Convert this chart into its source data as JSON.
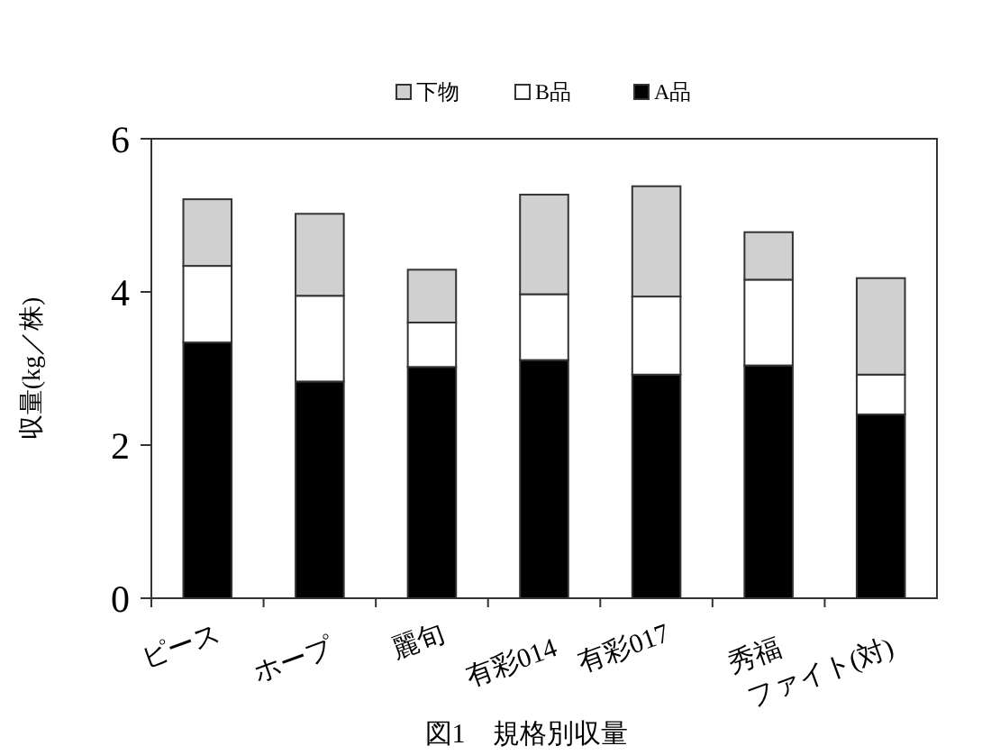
{
  "chart_data": {
    "type": "bar",
    "title": "図1　規格別収量",
    "ylabel": "収量(kg／株)",
    "categories": [
      "ピース",
      "ホープ",
      "麗旬",
      "有彩014",
      "有彩017",
      "秀福",
      "ファイト(対)"
    ],
    "stacked": true,
    "legend": "top",
    "ylim": [
      0,
      6
    ],
    "yticks": [
      0,
      2,
      4,
      6
    ],
    "series": [
      {
        "name": "A品",
        "color": "#000000",
        "values": [
          3.34,
          2.83,
          3.02,
          3.11,
          2.92,
          3.04,
          2.4
        ]
      },
      {
        "name": "B品",
        "color": "#ffffff",
        "values": [
          1.0,
          1.12,
          0.58,
          0.86,
          1.02,
          1.12,
          0.52
        ]
      },
      {
        "name": "下物",
        "color": "#d0d0d0",
        "values": [
          0.87,
          1.07,
          0.69,
          1.3,
          1.44,
          0.62,
          1.26
        ]
      }
    ]
  }
}
